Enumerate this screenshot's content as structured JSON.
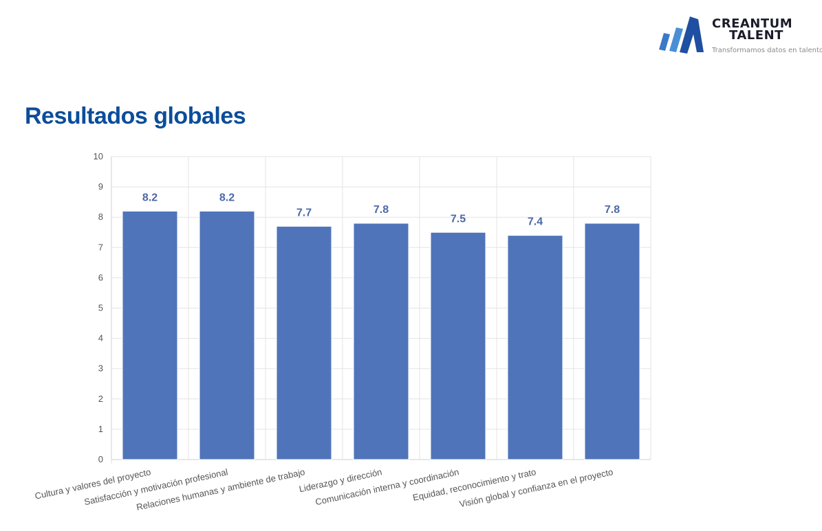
{
  "brand": {
    "name_line1": "CREANTUM",
    "name_line2": "TALENT",
    "tagline": "Transformamos datos en talento",
    "logo_colors": [
      "#3a78c9",
      "#1f4fa0"
    ]
  },
  "page": {
    "title": "Resultados globales"
  },
  "colors": {
    "bar": "#4f74b9",
    "label": "#4a68a8",
    "title": "#0b4d9a",
    "grid": "#e3e3e3"
  },
  "chart_data": {
    "type": "bar",
    "categories": [
      "Cultura y valores del proyecto",
      "Satisfacción y motivación profesional",
      "Relaciones humanas y ambiente de trabajo",
      "Liderazgo y dirección",
      "Comunicación interna y coordinación",
      "Equidad, reconocimiento y trato",
      "Visión global y confianza en el proyecto"
    ],
    "values": [
      8.2,
      8.2,
      7.7,
      7.8,
      7.5,
      7.4,
      7.8
    ],
    "data_labels": [
      "8.2",
      "8.2",
      "7.7",
      "7.8",
      "7.5",
      "7.4",
      "7.8"
    ],
    "ylim": [
      0,
      10
    ],
    "yticks": [
      0,
      1,
      2,
      3,
      4,
      5,
      6,
      7,
      8,
      9,
      10
    ],
    "grid": true,
    "legend": false,
    "xlabel": "",
    "ylabel": ""
  }
}
